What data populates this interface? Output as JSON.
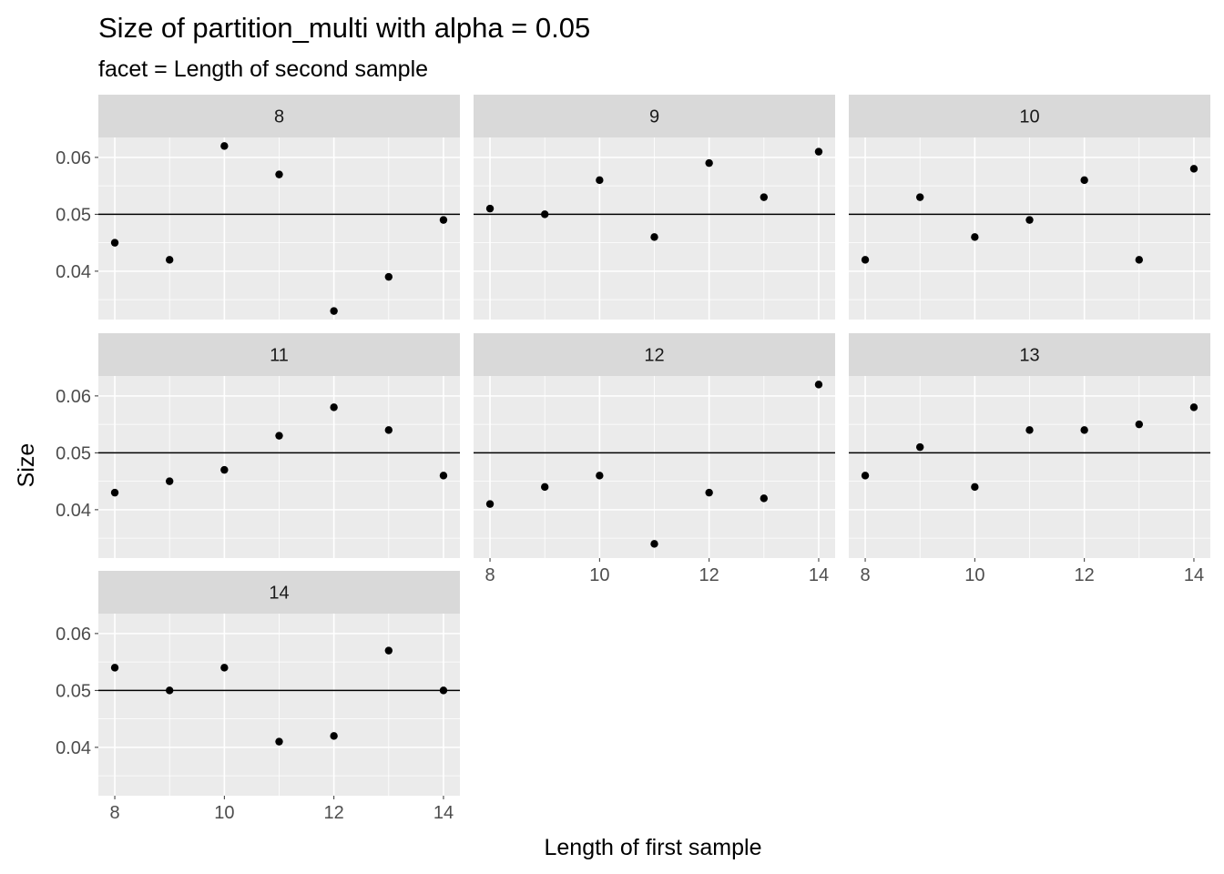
{
  "chart_data": {
    "type": "scatter",
    "title": "Size of partition_multi with alpha = 0.05",
    "subtitle": "facet = Length of second sample",
    "xlabel": "Length of first sample",
    "ylabel": "Size",
    "xlim": [
      7.7,
      14.3
    ],
    "ylim": [
      0.0315,
      0.0635
    ],
    "x_ticks": [
      8,
      10,
      12,
      14
    ],
    "y_ticks": [
      0.04,
      0.05,
      0.06
    ],
    "y_tick_labels": [
      "0.04",
      "0.05",
      "0.06"
    ],
    "reference_line": 0.05,
    "grid": true,
    "facets": [
      {
        "label": "8",
        "x": [
          8,
          9,
          10,
          11,
          12,
          13,
          14
        ],
        "y": [
          0.045,
          0.042,
          0.062,
          0.057,
          0.033,
          0.039,
          0.049
        ]
      },
      {
        "label": "9",
        "x": [
          8,
          9,
          10,
          11,
          12,
          13,
          14
        ],
        "y": [
          0.051,
          0.05,
          0.056,
          0.046,
          0.059,
          0.053,
          0.061
        ]
      },
      {
        "label": "10",
        "x": [
          8,
          9,
          10,
          11,
          12,
          13,
          14
        ],
        "y": [
          0.042,
          0.053,
          0.046,
          0.049,
          0.056,
          0.042,
          0.058
        ]
      },
      {
        "label": "11",
        "x": [
          8,
          9,
          10,
          11,
          12,
          13,
          14
        ],
        "y": [
          0.043,
          0.045,
          0.047,
          0.053,
          0.058,
          0.054,
          0.046
        ]
      },
      {
        "label": "12",
        "x": [
          8,
          9,
          10,
          11,
          12,
          13,
          14
        ],
        "y": [
          0.041,
          0.044,
          0.046,
          0.034,
          0.043,
          0.042,
          0.062
        ]
      },
      {
        "label": "13",
        "x": [
          8,
          9,
          10,
          11,
          12,
          13,
          14
        ],
        "y": [
          0.046,
          0.051,
          0.044,
          0.054,
          0.054,
          0.055,
          0.058
        ]
      },
      {
        "label": "14",
        "x": [
          8,
          9,
          10,
          11,
          12,
          13,
          14
        ],
        "y": [
          0.054,
          0.05,
          0.054,
          0.041,
          0.042,
          0.057,
          0.05
        ]
      }
    ]
  },
  "colors": {
    "panel_background": "#ebebeb",
    "strip_background": "#d9d9d9",
    "grid_major": "#ffffff",
    "point": "#000000",
    "reference_line": "#000000",
    "tick_text": "#4d4d4d"
  }
}
